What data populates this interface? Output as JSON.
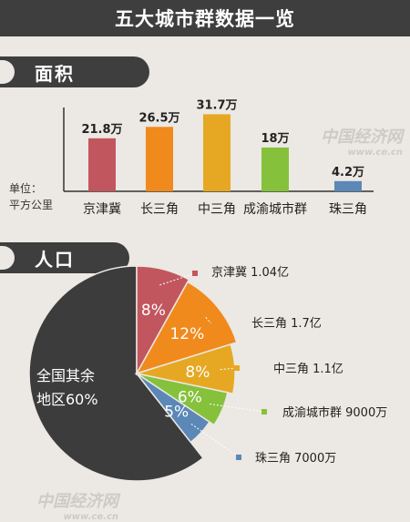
{
  "header": {
    "title": "五大城市群数据一览"
  },
  "sections": {
    "area_label": "面积",
    "population_label": "人口"
  },
  "unit_note": {
    "line1": "单位：",
    "line2": "平方公里"
  },
  "watermark": {
    "text": "中国经济网",
    "url": "www.ce.cn"
  },
  "colors": {
    "jingjinji": "#c2565e",
    "changsanjiao": "#f08a1c",
    "zhongsanjiao": "#e6a823",
    "chengyu": "#86c13c",
    "zhusanjiao": "#5b88b6",
    "rest": "#3c3c3c"
  },
  "chart_data": [
    {
      "type": "bar",
      "title": "",
      "categories": [
        "京津冀",
        "长三角",
        "中三角",
        "成渝城市群",
        "珠三角"
      ],
      "values": [
        21.8,
        26.5,
        31.7,
        18,
        4.2
      ],
      "data_labels": [
        "21.8万",
        "26.5万",
        "31.7万",
        "18万",
        "4.2万"
      ],
      "ylabel": "单位：平方公里",
      "ylim": [
        0,
        35
      ],
      "grid": false
    },
    {
      "type": "pie",
      "title": "",
      "slices": [
        {
          "name": "京津冀",
          "value": 8,
          "percent_label": "8%",
          "callout": "京津冀  1.04亿"
        },
        {
          "name": "长三角",
          "value": 12,
          "percent_label": "12%",
          "callout": "长三角  1.7亿"
        },
        {
          "name": "中三角",
          "value": 8,
          "percent_label": "8%",
          "callout": "中三角 1.1亿"
        },
        {
          "name": "成渝城市群",
          "value": 6,
          "percent_label": "6%",
          "callout": "成渝城市群  9000万"
        },
        {
          "name": "珠三角",
          "value": 5,
          "percent_label": "5%",
          "callout": "珠三角  7000万"
        }
      ],
      "rest": {
        "value": 60,
        "label_line1": "全国其余",
        "label_line2": "地区60%"
      }
    }
  ]
}
